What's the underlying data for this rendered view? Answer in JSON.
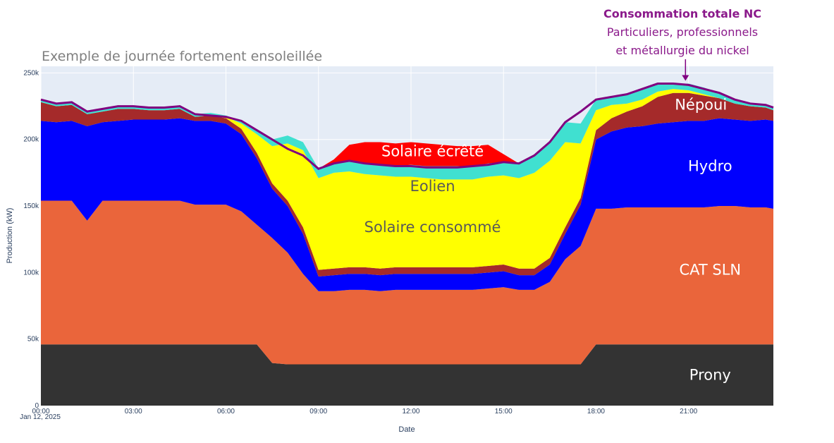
{
  "chart_data": {
    "type": "area",
    "stacked": true,
    "title": "Exemple de journée fortement ensoleillée",
    "xlabel": "Date",
    "ylabel": "Production (kW)",
    "ylim": [
      0,
      255000
    ],
    "xlim_hours": [
      0,
      23.75
    ],
    "y_ticks": [
      0,
      50000,
      100000,
      150000,
      200000,
      250000
    ],
    "y_tick_labels": [
      "0",
      "50k",
      "100k",
      "150k",
      "200k",
      "250k"
    ],
    "x_ticks": [
      0,
      3,
      6,
      9,
      12,
      15,
      18,
      21
    ],
    "x_tick_labels": [
      "00:00",
      "03:00",
      "06:00",
      "09:00",
      "12:00",
      "15:00",
      "18:00",
      "21:00"
    ],
    "x_date_label": "Jan 12, 2025",
    "grid": true,
    "plot_background": "#e5ecf6",
    "x": [
      0,
      0.5,
      1,
      1.5,
      2,
      2.5,
      3,
      3.5,
      4,
      4.5,
      5,
      5.5,
      6,
      6.5,
      7,
      7.5,
      8,
      8.5,
      9,
      9.5,
      10,
      10.5,
      11,
      11.5,
      12,
      12.5,
      13,
      13.5,
      14,
      14.5,
      15,
      15.5,
      16,
      16.5,
      17,
      17.5,
      18,
      18.5,
      19,
      19.5,
      20,
      20.5,
      21,
      21.5,
      22,
      22.5,
      23,
      23.5,
      23.75
    ],
    "series": [
      {
        "name": "Prony",
        "color": "#333333",
        "values": [
          46000,
          46000,
          46000,
          46000,
          46000,
          46000,
          46000,
          46000,
          46000,
          46000,
          46000,
          46000,
          46000,
          46000,
          46000,
          32000,
          31000,
          31000,
          31000,
          31000,
          31000,
          31000,
          31000,
          31000,
          31000,
          31000,
          31000,
          31000,
          31000,
          31000,
          31000,
          31000,
          31000,
          31000,
          31000,
          31000,
          46000,
          46000,
          46000,
          46000,
          46000,
          46000,
          46000,
          46000,
          46000,
          46000,
          46000,
          46000,
          46000
        ]
      },
      {
        "name": "CAT SLN",
        "color": "#ea653b",
        "values": [
          108000,
          108000,
          108000,
          93000,
          108000,
          108000,
          108000,
          108000,
          108000,
          108000,
          105000,
          105000,
          105000,
          100000,
          90000,
          94000,
          84000,
          68000,
          55000,
          55000,
          56000,
          56000,
          55000,
          56000,
          56000,
          56000,
          56000,
          56000,
          56000,
          57000,
          58000,
          56000,
          56000,
          62000,
          79000,
          89000,
          102000,
          102000,
          103000,
          103000,
          103000,
          103000,
          103000,
          103000,
          104000,
          104000,
          103000,
          103000,
          102000
        ]
      },
      {
        "name": "Hydro",
        "color": "#0000fe",
        "values": [
          60000,
          59000,
          60000,
          71000,
          59000,
          60000,
          61000,
          61000,
          61000,
          62000,
          63000,
          63000,
          61000,
          58000,
          50000,
          37000,
          35000,
          30000,
          11000,
          12000,
          12000,
          12000,
          12000,
          12000,
          12000,
          12000,
          12000,
          12000,
          12000,
          12000,
          12000,
          11000,
          11000,
          13000,
          19000,
          31000,
          52000,
          58000,
          60000,
          61000,
          63000,
          64000,
          65000,
          65000,
          66000,
          65000,
          65000,
          66000,
          66000
        ]
      },
      {
        "name": "Népoui",
        "color": "#a52a2a",
        "values": [
          14000,
          12000,
          12000,
          9000,
          8000,
          9000,
          8000,
          7000,
          7000,
          7000,
          3000,
          4000,
          4000,
          4000,
          4000,
          4000,
          4000,
          5000,
          5000,
          5000,
          5000,
          5000,
          5000,
          5000,
          5000,
          5000,
          5000,
          5000,
          5000,
          5000,
          5000,
          5000,
          5000,
          5000,
          5000,
          5000,
          7000,
          10000,
          12000,
          15000,
          20000,
          22000,
          21000,
          19000,
          15000,
          12000,
          11000,
          9000,
          8000
        ]
      },
      {
        "name": "Solaire consommé",
        "color": "#ffff00",
        "values": [
          0,
          0,
          0,
          0,
          0,
          0,
          0,
          0,
          0,
          0,
          0,
          0,
          1000,
          4000,
          14000,
          28000,
          43000,
          58000,
          69000,
          72000,
          72000,
          70000,
          70000,
          68000,
          68000,
          67000,
          66000,
          66000,
          66000,
          67000,
          67000,
          68000,
          72000,
          73000,
          64000,
          41000,
          15000,
          10000,
          6000,
          5000,
          4000,
          3000,
          2000,
          1000,
          0,
          0,
          0,
          0,
          0
        ]
      },
      {
        "name": "Eolien",
        "color": "#40e0d0",
        "values": [
          2000,
          2000,
          2000,
          2000,
          2000,
          2000,
          2000,
          2000,
          2000,
          2000,
          2000,
          2000,
          1000,
          2000,
          3000,
          5000,
          6000,
          6000,
          7000,
          7000,
          8000,
          8000,
          8000,
          8000,
          9000,
          9000,
          10000,
          10000,
          10000,
          10000,
          10000,
          11000,
          13000,
          14000,
          15000,
          15000,
          8000,
          6000,
          7000,
          8000,
          6000,
          4000,
          5000,
          5000,
          4000,
          3000,
          2000,
          2000,
          2000
        ]
      },
      {
        "name": "Solaire écrêté",
        "color": "#ff0000",
        "values": [
          0,
          0,
          0,
          0,
          0,
          0,
          0,
          0,
          0,
          0,
          0,
          0,
          0,
          0,
          0,
          0,
          0,
          0,
          0,
          3000,
          12000,
          16000,
          17000,
          17000,
          17000,
          17000,
          16000,
          15000,
          15000,
          14000,
          6000,
          0,
          0,
          0,
          0,
          0,
          0,
          0,
          0,
          0,
          0,
          0,
          0,
          0,
          0,
          0,
          0,
          0,
          0
        ]
      }
    ],
    "total_line": {
      "name": "Consommation totale NC",
      "color": "#800080",
      "values": [
        230000,
        227000,
        228000,
        221000,
        223000,
        225000,
        225000,
        224000,
        224000,
        225000,
        219000,
        218000,
        217000,
        214000,
        207000,
        200000,
        193000,
        188000,
        178000,
        182000,
        184000,
        182000,
        181000,
        180000,
        180000,
        179000,
        179000,
        179000,
        180000,
        181000,
        183000,
        182000,
        188000,
        198000,
        213000,
        221000,
        230000,
        232000,
        234000,
        238000,
        242000,
        242000,
        241000,
        238000,
        235000,
        230000,
        227000,
        226000,
        224000
      ]
    },
    "annotation": {
      "title": "Consommation totale NC",
      "line1": "Particuliers, professionnels",
      "line2": "et métallurgie du nickel",
      "arrow_color": "#800080"
    },
    "area_labels": [
      {
        "text": "Solaire écrêté",
        "x": 12.7,
        "y": 191000,
        "color": "#ffffff"
      },
      {
        "text": "Eolien",
        "x": 12.7,
        "y": 165000,
        "color": "#595959"
      },
      {
        "text": "Solaire consommé",
        "x": 12.7,
        "y": 134000,
        "color": "#595959"
      },
      {
        "text": "Népoui",
        "x": 21.4,
        "y": 226000,
        "color": "#ffffff"
      },
      {
        "text": "Hydro",
        "x": 21.7,
        "y": 180000,
        "color": "#ffffff"
      },
      {
        "text": "CAT SLN",
        "x": 21.7,
        "y": 102000,
        "color": "#ffffff"
      },
      {
        "text": "Prony",
        "x": 21.7,
        "y": 23000,
        "color": "#ffffff"
      }
    ]
  }
}
